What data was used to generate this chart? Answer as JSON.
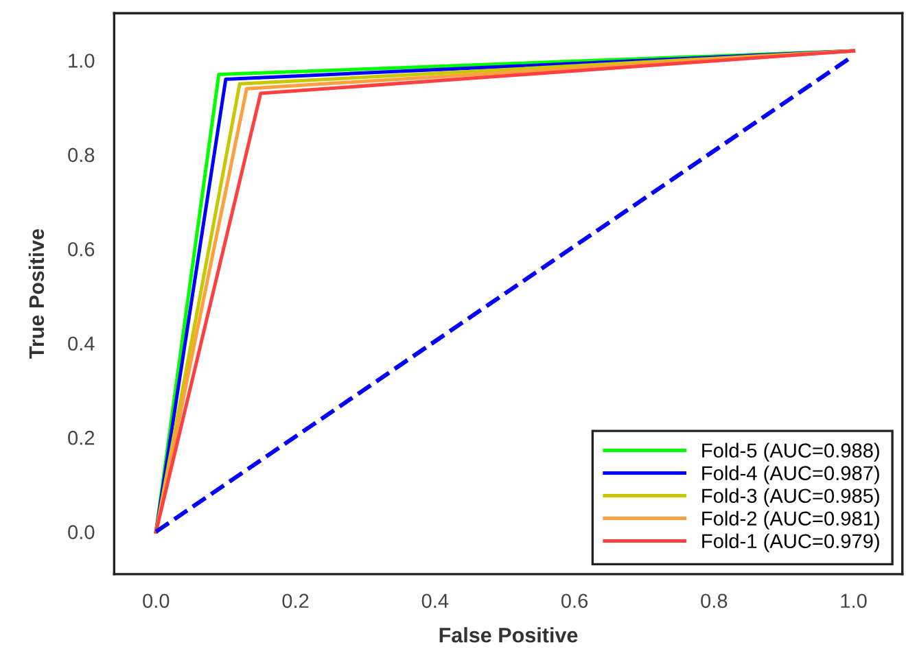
{
  "chart_data": {
    "type": "line",
    "xlabel": "False Positive",
    "ylabel": "True Positive",
    "series": [
      {
        "name": "Fold-5 (AUC=0.988)",
        "color": "#00ff00",
        "x": [
          0,
          0.09,
          1.0
        ],
        "values": [
          0,
          0.97,
          1.02
        ]
      },
      {
        "name": "Fold-4 (AUC=0.987)",
        "color": "#0000ff",
        "x": [
          0,
          0.1,
          1.0
        ],
        "values": [
          0,
          0.96,
          1.02
        ]
      },
      {
        "name": "Fold-3 (AUC=0.985)",
        "color": "#c8c800",
        "x": [
          0,
          0.12,
          1.0
        ],
        "values": [
          0,
          0.95,
          1.02
        ]
      },
      {
        "name": "Fold-2 (AUC=0.981)",
        "color": "#ffa040",
        "x": [
          0,
          0.13,
          1.0
        ],
        "values": [
          0,
          0.94,
          1.02
        ]
      },
      {
        "name": "Fold-1 (AUC=0.979)",
        "color": "#ff4040",
        "x": [
          0,
          0.15,
          1.0
        ],
        "values": [
          0,
          0.93,
          1.02
        ]
      },
      {
        "color": "#0000ff",
        "x": [
          0,
          1.0
        ],
        "values": [
          0,
          1.01
        ],
        "line_style": "dashed"
      }
    ],
    "xlim": [
      -0.06,
      1.07
    ],
    "ylim": [
      -0.09,
      1.1
    ],
    "xticks": [
      {
        "value": 0,
        "label": "0.0"
      },
      0.2,
      0.4,
      0.6,
      0.8,
      {
        "value": 1.0,
        "label": "1.0"
      }
    ],
    "yticks": [
      {
        "value": 0,
        "label": "0.0"
      },
      0.2,
      0.4,
      0.6,
      0.8,
      {
        "value": 1.0,
        "label": "1.0"
      }
    ],
    "grid": false,
    "legend": "bottom right",
    "line_style": "solid",
    "marker": "none"
  }
}
